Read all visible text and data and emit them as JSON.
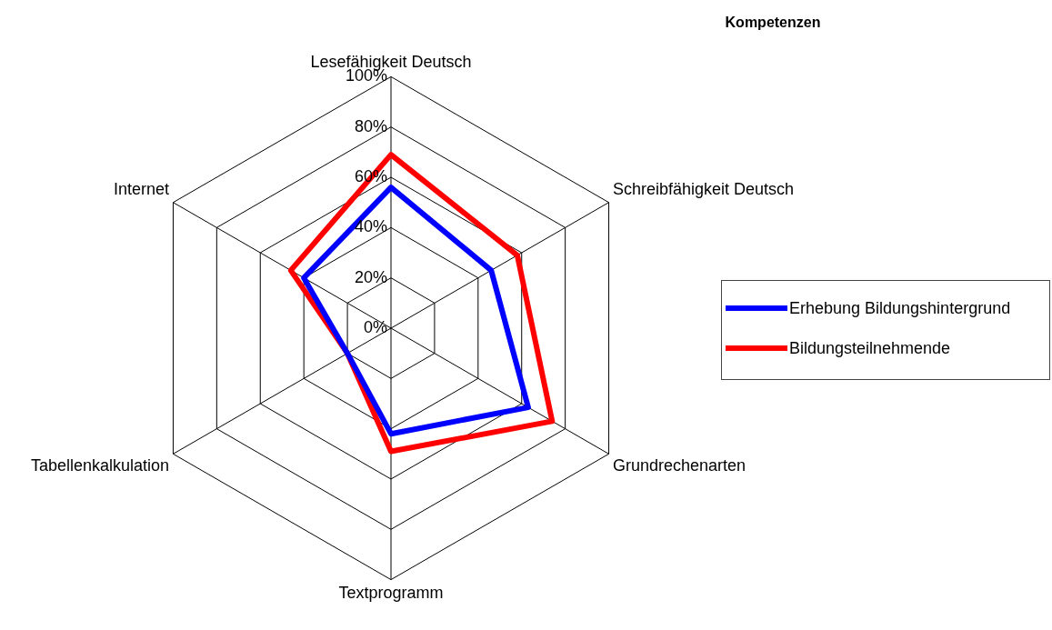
{
  "chart_data": {
    "type": "radar",
    "title": "Kompetenzen",
    "categories": [
      "Lesefähigkeit Deutsch",
      "Schreibfähigkeit Deutsch",
      "Grundrechenarten",
      "Textprogramm",
      "Tabellenkalkulation",
      "Internet"
    ],
    "series": [
      {
        "name": "Erhebung Bildungshintergrund",
        "color": "#0000ff",
        "values": [
          56,
          46,
          63,
          42,
          20,
          40
        ]
      },
      {
        "name": "Bildungsteilnehmende",
        "color": "#ff0000",
        "values": [
          69,
          58,
          74,
          49,
          20,
          46
        ]
      }
    ],
    "ylim": [
      0,
      100
    ],
    "yticks": [
      {
        "value": 0,
        "label": "0%"
      },
      {
        "value": 20,
        "label": "20%"
      },
      {
        "value": 40,
        "label": "40%"
      },
      {
        "value": 60,
        "label": "60%"
      },
      {
        "value": 80,
        "label": "80%"
      },
      {
        "value": 100,
        "label": "100%"
      }
    ],
    "grid": true,
    "legend": "right",
    "marker": "none"
  }
}
